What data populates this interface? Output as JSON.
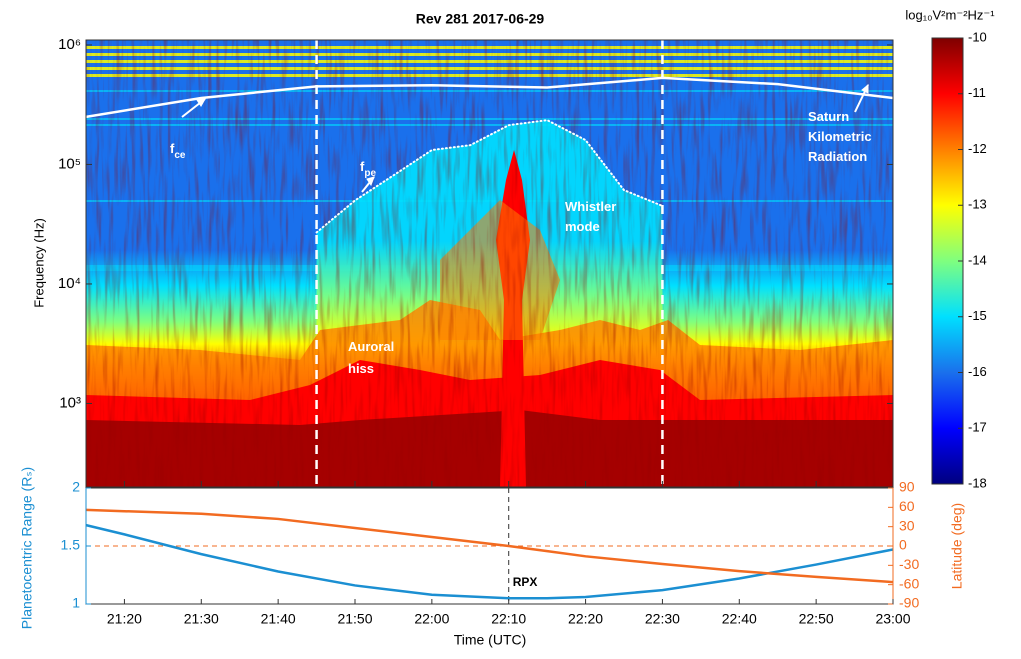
{
  "chart_data": [
    {
      "type": "spectrogram",
      "title": "Rev 281 2017-06-29",
      "ylabel": "Frequency (Hz)",
      "yscale": "log",
      "ylim": [
        200,
        1100000
      ],
      "yticks": [
        {
          "value": 1000,
          "label": "10³"
        },
        {
          "value": 10000,
          "label": "10⁴"
        },
        {
          "value": 100000,
          "label": "10⁵"
        },
        {
          "value": 1000000,
          "label": "10⁶"
        }
      ],
      "xlim": [
        "21:15",
        "23:00"
      ],
      "xticks": [
        "21:20",
        "21:30",
        "21:40",
        "21:50",
        "22:00",
        "22:10",
        "22:20",
        "22:30",
        "22:40",
        "22:50",
        "23:00"
      ],
      "colorbar": {
        "label": "log₁₀V²m⁻²Hz⁻¹",
        "lim": [
          -18,
          -10
        ],
        "ticks": [
          -10,
          -11,
          -12,
          -13,
          -14,
          -15,
          -16,
          -17,
          -18
        ],
        "colormap": [
          "#00007f",
          "#0000ff",
          "#1a70ec",
          "#00e0ff",
          "#7fff7f",
          "#ffff00",
          "#ff8000",
          "#ff0000",
          "#7f0000"
        ]
      },
      "vlines": [
        "21:45",
        "22:30"
      ],
      "curves": [
        {
          "x": [
            "21:15",
            "21:30",
            "21:45",
            "22:00",
            "22:15",
            "22:30",
            "22:45",
            "23:00"
          ],
          "values": [
            250000,
            360000,
            450000,
            460000,
            440000,
            530000,
            470000,
            360000
          ],
          "color": "#ffffff",
          "style": "solid"
        },
        {
          "x": [
            "21:45",
            "21:50",
            "21:55",
            "22:00",
            "22:05",
            "22:10",
            "22:15",
            "22:20",
            "22:25",
            "22:30"
          ],
          "values": [
            27000,
            50000,
            81000,
            132000,
            145000,
            213000,
            235000,
            160000,
            61000,
            45000
          ],
          "color": "#ffffff",
          "style": "dotted"
        }
      ],
      "annotations": [
        {
          "text": "f",
          "sub": "ce"
        },
        {
          "text": "f",
          "sub": "pe"
        },
        {
          "text": "Whistler"
        },
        {
          "text": "mode"
        },
        {
          "text": "Saturn"
        },
        {
          "text": "Kilometric"
        },
        {
          "text": "Radiation"
        },
        {
          "text": "Auroral"
        },
        {
          "text": "hiss"
        }
      ]
    },
    {
      "type": "line",
      "xlabel": "Time (UTC)",
      "xlim": [
        "21:15",
        "23:00"
      ],
      "xticks": [
        "21:20",
        "21:30",
        "21:40",
        "21:50",
        "22:00",
        "22:10",
        "22:20",
        "22:30",
        "22:40",
        "22:50",
        "23:00"
      ],
      "x": [
        "21:15",
        "21:20",
        "21:30",
        "21:40",
        "21:50",
        "22:00",
        "22:10",
        "22:15",
        "22:20",
        "22:30",
        "22:40",
        "22:50",
        "23:00"
      ],
      "ylabel": "Planetocentric Range (Rₛ)",
      "ylim": [
        1,
        2
      ],
      "yticks": [
        1,
        1.5,
        2
      ],
      "y2label": "Latitude (deg)",
      "y2lim": [
        -90,
        90
      ],
      "y2ticks": [
        90,
        60,
        30,
        0,
        -30,
        -60,
        -90
      ],
      "series": [
        {
          "color": "#1b8fd2",
          "axis": "y",
          "values": [
            1.68,
            1.6,
            1.43,
            1.28,
            1.16,
            1.08,
            1.05,
            1.05,
            1.06,
            1.12,
            1.22,
            1.34,
            1.47
          ]
        },
        {
          "color": "#f26b21",
          "axis": "y2",
          "values": [
            56,
            54,
            50,
            42,
            28,
            14,
            0,
            -8,
            -16,
            -28,
            -39,
            -48,
            -56
          ]
        }
      ],
      "hline": {
        "value": 0,
        "axis": "y2"
      },
      "vline": "22:10",
      "annotation": "RPX"
    }
  ]
}
